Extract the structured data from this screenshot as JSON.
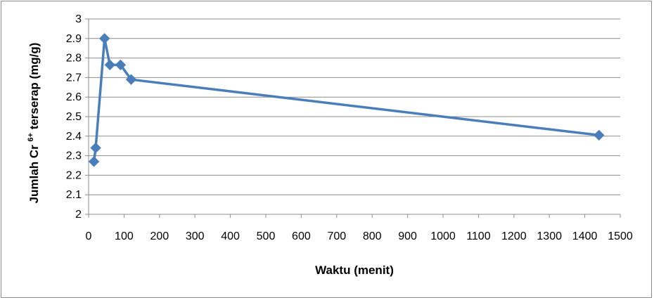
{
  "chart_data": {
    "type": "scatter",
    "mode": "lines+markers",
    "xlabel": "Waktu (menit)",
    "ylabel": {
      "prefix": "Jumlah Cr ",
      "superscript": "6+",
      "suffix": " terserap (mg/g)"
    },
    "xlim": [
      0,
      1500
    ],
    "ylim": [
      2,
      3
    ],
    "xticks": [
      "0",
      "100",
      "200",
      "300",
      "400",
      "500",
      "600",
      "700",
      "800",
      "900",
      "1000",
      "1100",
      "1200",
      "1300",
      "1400",
      "1500"
    ],
    "yticks": [
      "2",
      "2.1",
      "2.2",
      "2.3",
      "2.4",
      "2.5",
      "2.6",
      "2.7",
      "2.8",
      "2.9",
      "3"
    ],
    "grid": "horizontal",
    "legend": "none",
    "series": [
      {
        "color": "#4a7ebb",
        "points": [
          {
            "x": 15,
            "y": 2.27
          },
          {
            "x": 20,
            "y": 2.34
          },
          {
            "x": 45,
            "y": 2.9
          },
          {
            "x": 60,
            "y": 2.765
          },
          {
            "x": 90,
            "y": 2.765
          },
          {
            "x": 120,
            "y": 2.69
          },
          {
            "x": 1440,
            "y": 2.405
          }
        ]
      }
    ]
  }
}
